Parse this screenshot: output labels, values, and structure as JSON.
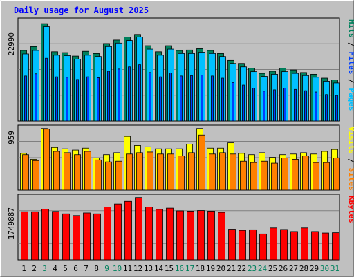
{
  "chart_data": [
    {
      "type": "bar",
      "title": "Daily usage for August 2025",
      "ylabel_parts": [
        "Pages",
        " / ",
        "Files",
        " / ",
        "Hits"
      ],
      "ytick_label": "22990",
      "ylim": [
        0,
        23800
      ],
      "grid": true,
      "categories": [
        "1",
        "2",
        "3",
        "4",
        "5",
        "6",
        "7",
        "8",
        "9",
        "10",
        "11",
        "12",
        "13",
        "14",
        "15",
        "16",
        "17",
        "18",
        "19",
        "20",
        "21",
        "22",
        "23",
        "24",
        "25",
        "26",
        "27",
        "28",
        "29",
        "30",
        "31"
      ],
      "weekend_days": [
        "3",
        "9",
        "10",
        "16",
        "17",
        "23",
        "24",
        "30",
        "31"
      ],
      "series": [
        {
          "name": "Hits",
          "values": [
            16300,
            17200,
            22500,
            16000,
            15800,
            15000,
            16100,
            15600,
            17900,
            18700,
            19400,
            20000,
            17400,
            16000,
            17400,
            16300,
            16400,
            16700,
            16300,
            15600,
            14000,
            13300,
            12200,
            11000,
            11500,
            12200,
            11800,
            11200,
            10800,
            9900,
            9500
          ]
        },
        {
          "name": "Files",
          "values": [
            15500,
            16300,
            21800,
            15200,
            15100,
            14300,
            15200,
            14900,
            17200,
            18000,
            18600,
            19400,
            16600,
            15200,
            16600,
            15600,
            15600,
            15900,
            15600,
            14900,
            13300,
            12500,
            11400,
            10300,
            10800,
            11400,
            11000,
            10500,
            10100,
            9200,
            8800
          ]
        },
        {
          "name": "Pages",
          "values": [
            10400,
            10900,
            14500,
            10200,
            10100,
            9600,
            10200,
            10000,
            11500,
            12000,
            12500,
            13000,
            11200,
            10200,
            11100,
            10400,
            10500,
            10600,
            10400,
            9900,
            8900,
            8300,
            7600,
            6900,
            7200,
            7600,
            7300,
            7000,
            6700,
            6100,
            5900
          ]
        }
      ]
    },
    {
      "type": "bar",
      "ylabel_parts": [
        "Sites",
        " / ",
        "Visits"
      ],
      "ytick_label": "959",
      "ylim": [
        0,
        990
      ],
      "grid": true,
      "categories": [
        "1",
        "2",
        "3",
        "4",
        "5",
        "6",
        "7",
        "8",
        "9",
        "10",
        "11",
        "12",
        "13",
        "14",
        "15",
        "16",
        "17",
        "18",
        "19",
        "20",
        "21",
        "22",
        "23",
        "24",
        "25",
        "26",
        "27",
        "28",
        "29",
        "30",
        "31"
      ],
      "series": [
        {
          "name": "Visits",
          "values": [
            560,
            470,
            940,
            650,
            630,
            610,
            640,
            490,
            540,
            570,
            820,
            680,
            660,
            630,
            630,
            630,
            700,
            940,
            640,
            640,
            720,
            560,
            540,
            570,
            500,
            540,
            550,
            570,
            550,
            590,
            620
          ]
        },
        {
          "name": "Sites",
          "values": [
            540,
            450,
            930,
            590,
            570,
            540,
            590,
            460,
            430,
            440,
            550,
            570,
            580,
            550,
            550,
            520,
            570,
            840,
            550,
            570,
            550,
            440,
            420,
            440,
            410,
            490,
            470,
            520,
            420,
            420,
            490
          ]
        }
      ]
    },
    {
      "type": "bar",
      "ylabel_parts": [
        "KBytes"
      ],
      "ytick_label": "1749887",
      "ylim": [
        0,
        2220000
      ],
      "grid": true,
      "categories": [
        "1",
        "2",
        "3",
        "4",
        "5",
        "6",
        "7",
        "8",
        "9",
        "10",
        "11",
        "12",
        "13",
        "14",
        "15",
        "16",
        "17",
        "18",
        "19",
        "20",
        "21",
        "22",
        "23",
        "24",
        "25",
        "26",
        "27",
        "28",
        "29",
        "30",
        "31"
      ],
      "series": [
        {
          "name": "KBytes",
          "values": [
            1630000,
            1630000,
            1720000,
            1640000,
            1560000,
            1500000,
            1590000,
            1560000,
            1790000,
            1890000,
            1980000,
            2110000,
            1790000,
            1710000,
            1750000,
            1660000,
            1650000,
            1670000,
            1650000,
            1610000,
            1040000,
            1000000,
            1020000,
            880000,
            1080000,
            1030000,
            960000,
            1080000,
            960000,
            910000,
            920000
          ]
        }
      ]
    }
  ],
  "colors": {
    "background": "#c0c0c0",
    "title": "#0000ff",
    "hits": "#00805c",
    "files": "#00c0ff",
    "pages": "#0040ff",
    "visits": "#ffff00",
    "sites": "#ff8000",
    "kbytes": "#ff0000",
    "weekday_label": "#000000",
    "weekend_label": "#00805c",
    "separator": "#000000"
  }
}
